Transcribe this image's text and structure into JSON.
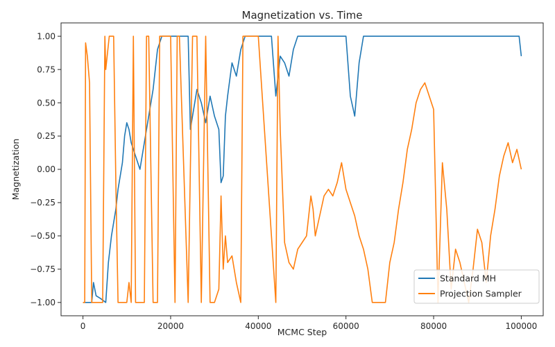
{
  "chart_data": {
    "type": "line",
    "title": "Magnetization vs. Time",
    "xlabel": "MCMC Step",
    "ylabel": "Magnetization",
    "xlim": [
      -5000,
      105000
    ],
    "ylim": [
      -1.1,
      1.1
    ],
    "xticks": [
      0,
      20000,
      40000,
      60000,
      80000,
      100000
    ],
    "yticks": [
      -1.0,
      -0.75,
      -0.5,
      -0.25,
      0.0,
      0.25,
      0.5,
      0.75,
      1.0
    ],
    "xtick_labels": [
      "0",
      "20000",
      "40000",
      "60000",
      "80000",
      "100000"
    ],
    "ytick_labels": [
      "−1.00",
      "−0.75",
      "−0.50",
      "−0.25",
      "0.00",
      "0.25",
      "0.50",
      "0.75",
      "1.00"
    ],
    "grid": false,
    "legend_position": "lower-right",
    "series": [
      {
        "name": "Standard MH",
        "color": "#1f77b4",
        "x": [
          0,
          2000,
          2400,
          3000,
          4000,
          5200,
          5800,
          6500,
          7500,
          8000,
          9000,
          9500,
          10000,
          10500,
          11000,
          12000,
          13000,
          14000,
          15000,
          16000,
          16500,
          17000,
          18000,
          20000,
          22000,
          24000,
          24500,
          25000,
          26000,
          27000,
          28000,
          29000,
          30000,
          31000,
          31500,
          32000,
          32500,
          33000,
          34000,
          35000,
          36000,
          36500,
          37000,
          40000,
          43000,
          44000,
          45000,
          46000,
          47000,
          48000,
          49000,
          50000,
          55000,
          60000,
          61000,
          62000,
          63000,
          64000,
          65000,
          70000,
          75000,
          80000,
          85000,
          90000,
          95000,
          99500,
          100000
        ],
        "y": [
          -1.0,
          -1.0,
          -0.85,
          -0.95,
          -0.97,
          -1.0,
          -0.7,
          -0.5,
          -0.3,
          -0.15,
          0.05,
          0.25,
          0.35,
          0.3,
          0.2,
          0.1,
          0.0,
          0.2,
          0.4,
          0.6,
          0.75,
          0.9,
          1.0,
          1.0,
          1.0,
          1.0,
          0.3,
          0.4,
          0.6,
          0.5,
          0.35,
          0.55,
          0.4,
          0.3,
          -0.1,
          -0.05,
          0.4,
          0.55,
          0.8,
          0.7,
          0.9,
          0.95,
          1.0,
          1.0,
          1.0,
          0.55,
          0.85,
          0.8,
          0.7,
          0.9,
          1.0,
          1.0,
          1.0,
          1.0,
          0.55,
          0.4,
          0.8,
          1.0,
          1.0,
          1.0,
          1.0,
          1.0,
          1.0,
          1.0,
          1.0,
          1.0,
          0.85
        ]
      },
      {
        "name": "Projection Sampler",
        "color": "#ff7f0e",
        "x": [
          0,
          400,
          600,
          1000,
          1500,
          2000,
          2500,
          3000,
          4500,
          5000,
          5200,
          6000,
          7000,
          7500,
          8000,
          10000,
          10500,
          11000,
          11500,
          12000,
          14000,
          14500,
          15000,
          16000,
          17000,
          17500,
          20000,
          21000,
          21500,
          22000,
          24000,
          25000,
          26000,
          27000,
          28000,
          29000,
          30000,
          31000,
          31500,
          32000,
          32500,
          33000,
          34000,
          35000,
          36000,
          36500,
          37000,
          40000,
          44000,
          44500,
          45000,
          46000,
          47000,
          48000,
          49000,
          50000,
          51000,
          52000,
          52500,
          53000,
          54000,
          55000,
          56000,
          57000,
          58000,
          59000,
          60000,
          61000,
          62000,
          63000,
          64000,
          65000,
          66000,
          67000,
          68000,
          69000,
          70000,
          71000,
          72000,
          73000,
          74000,
          75000,
          76000,
          77000,
          78000,
          79000,
          80000,
          81000,
          82000,
          83000,
          84000,
          85000,
          86000,
          87000,
          88000,
          89000,
          90000,
          91000,
          92000,
          93000,
          94000,
          95000,
          96000,
          97000,
          98000,
          99000,
          100000
        ],
        "y": [
          -1.0,
          -1.0,
          0.95,
          0.85,
          0.65,
          -1.0,
          -1.0,
          -1.0,
          -1.0,
          1.0,
          0.75,
          1.0,
          1.0,
          -0.1,
          -1.0,
          -1.0,
          -0.85,
          -1.0,
          1.0,
          -1.0,
          -1.0,
          1.0,
          1.0,
          -1.0,
          -1.0,
          1.0,
          1.0,
          -1.0,
          1.0,
          1.0,
          -1.0,
          1.0,
          1.0,
          -1.0,
          1.0,
          -1.0,
          -1.0,
          -0.9,
          -0.2,
          -0.75,
          -0.5,
          -0.7,
          -0.65,
          -0.85,
          -1.0,
          1.0,
          1.0,
          1.0,
          -1.0,
          1.0,
          0.3,
          -0.55,
          -0.7,
          -0.75,
          -0.6,
          -0.55,
          -0.5,
          -0.2,
          -0.3,
          -0.5,
          -0.35,
          -0.2,
          -0.15,
          -0.2,
          -0.1,
          0.05,
          -0.15,
          -0.25,
          -0.35,
          -0.5,
          -0.6,
          -0.75,
          -1.0,
          -1.0,
          -1.0,
          -1.0,
          -0.7,
          -0.55,
          -0.3,
          -0.1,
          0.15,
          0.3,
          0.5,
          0.6,
          0.65,
          0.55,
          0.45,
          -1.0,
          0.05,
          -0.3,
          -0.9,
          -0.6,
          -0.7,
          -0.85,
          -1.0,
          -0.75,
          -0.45,
          -0.55,
          -0.85,
          -0.5,
          -0.3,
          -0.05,
          0.1,
          0.2,
          0.05,
          0.15,
          0.0
        ],
        "markers_note": ""
      }
    ]
  }
}
